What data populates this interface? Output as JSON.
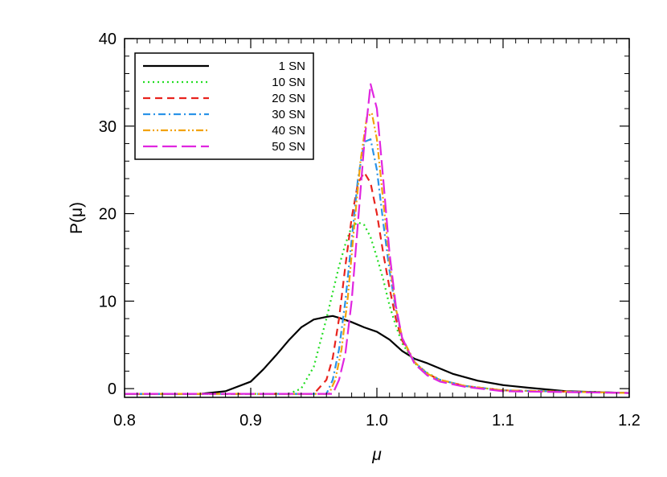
{
  "chart_data": {
    "type": "line",
    "title": "",
    "xlabel": "μ",
    "ylabel": "P(μ)",
    "xlim": [
      0.8,
      1.2
    ],
    "ylim": [
      -1,
      40
    ],
    "x_ticks": [
      0.8,
      0.9,
      1.0,
      1.1,
      1.2
    ],
    "x_tick_labels": [
      "0.8",
      "0.9",
      "1.0",
      "1.1",
      "1.2"
    ],
    "y_ticks": [
      0,
      10,
      20,
      30,
      40
    ],
    "y_tick_labels": [
      "0",
      "10",
      "20",
      "30",
      "40"
    ],
    "grid": false,
    "legend_position": "top-left",
    "series": [
      {
        "name": "1 SN",
        "color": "#000000",
        "dash": "solid",
        "x": [
          0.8,
          0.86,
          0.88,
          0.9,
          0.91,
          0.92,
          0.93,
          0.94,
          0.95,
          0.96,
          0.965,
          0.97,
          0.98,
          0.99,
          1.0,
          1.01,
          1.02,
          1.03,
          1.04,
          1.05,
          1.06,
          1.08,
          1.1,
          1.12,
          1.15,
          1.2
        ],
        "y": [
          -0.6,
          -0.6,
          -0.3,
          0.8,
          2.2,
          3.8,
          5.5,
          7.0,
          7.9,
          8.2,
          8.3,
          8.1,
          7.6,
          7.0,
          6.5,
          5.6,
          4.3,
          3.4,
          2.9,
          2.3,
          1.7,
          0.9,
          0.4,
          0.1,
          -0.3,
          -0.5
        ]
      },
      {
        "name": "10 SN",
        "color": "#22dd22",
        "dash": "dotted",
        "x": [
          0.8,
          0.93,
          0.94,
          0.95,
          0.96,
          0.97,
          0.975,
          0.98,
          0.985,
          0.99,
          0.995,
          1.0,
          1.005,
          1.01,
          1.015,
          1.02,
          1.03,
          1.04,
          1.05,
          1.07,
          1.1,
          1.2
        ],
        "y": [
          -0.6,
          -0.6,
          0.0,
          2.5,
          8.0,
          14.0,
          16.5,
          18.5,
          19.0,
          18.7,
          17.3,
          15.0,
          12.5,
          9.5,
          7.2,
          5.2,
          2.9,
          1.8,
          1.0,
          0.3,
          -0.2,
          -0.5
        ]
      },
      {
        "name": "20 SN",
        "color": "#e8231e",
        "dash": "dashed",
        "x": [
          0.8,
          0.95,
          0.96,
          0.965,
          0.97,
          0.975,
          0.98,
          0.985,
          0.99,
          0.995,
          1.0,
          1.005,
          1.01,
          1.015,
          1.02,
          1.03,
          1.04,
          1.05,
          1.07,
          1.1,
          1.2
        ],
        "y": [
          -0.6,
          -0.6,
          1.0,
          3.5,
          8.0,
          14.0,
          19.5,
          23.5,
          24.7,
          23.5,
          20.0,
          15.5,
          11.5,
          8.0,
          5.5,
          3.0,
          1.7,
          1.0,
          0.3,
          -0.2,
          -0.5
        ]
      },
      {
        "name": "30 SN",
        "color": "#2a93e8",
        "dash": "dashdot",
        "x": [
          0.8,
          0.96,
          0.965,
          0.97,
          0.975,
          0.98,
          0.985,
          0.99,
          0.995,
          1.0,
          1.005,
          1.01,
          1.015,
          1.02,
          1.03,
          1.04,
          1.05,
          1.07,
          1.1,
          1.2
        ],
        "y": [
          -0.6,
          -0.6,
          1.0,
          4.5,
          10.0,
          17.0,
          24.0,
          28.2,
          28.5,
          25.0,
          19.0,
          13.5,
          9.0,
          5.8,
          3.0,
          1.7,
          1.0,
          0.3,
          -0.2,
          -0.5
        ]
      },
      {
        "name": "40 SN",
        "color": "#f2a20c",
        "dash": "dashdotdot",
        "x": [
          0.8,
          0.962,
          0.967,
          0.972,
          0.977,
          0.982,
          0.987,
          0.992,
          0.996,
          1.0,
          1.005,
          1.01,
          1.015,
          1.02,
          1.03,
          1.04,
          1.05,
          1.07,
          1.1,
          1.2
        ],
        "y": [
          -0.6,
          -0.6,
          1.0,
          4.5,
          10.5,
          18.5,
          26.0,
          31.0,
          31.5,
          28.5,
          21.5,
          14.5,
          9.2,
          5.8,
          3.0,
          1.7,
          1.0,
          0.3,
          -0.2,
          -0.5
        ]
      },
      {
        "name": "50 SN",
        "color": "#e026e0",
        "dash": "longdash",
        "x": [
          0.8,
          0.965,
          0.97,
          0.975,
          0.98,
          0.985,
          0.99,
          0.995,
          1.0,
          1.005,
          1.01,
          1.015,
          1.02,
          1.03,
          1.04,
          1.05,
          1.07,
          1.1,
          1.2
        ],
        "y": [
          -0.6,
          -0.6,
          1.0,
          4.0,
          10.0,
          19.0,
          28.0,
          34.8,
          32.0,
          24.0,
          15.5,
          9.5,
          5.8,
          2.8,
          1.5,
          0.8,
          0.2,
          -0.3,
          -0.5
        ]
      }
    ]
  }
}
